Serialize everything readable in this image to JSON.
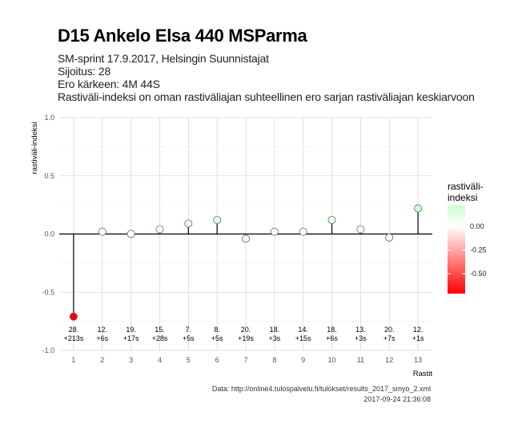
{
  "title": "D15 Ankelo Elsa 440 MSParma",
  "subtitle_lines": [
    "SM-sprint 17.9.2017, Helsingin Suunnistajat",
    "Sijoitus: 28",
    "Ero kärkeen: 4M 44S",
    "Rastiväli-indeksi on oman rastiväliajan suhteellinen ero sarjan rastiväliajan keskiarvoon"
  ],
  "caption": {
    "source": "Data: http://online4.tulospalvelu.fi/tulokset/results_2017_smyo_2.xml",
    "timestamp": "2017-09-24 21:36:08"
  },
  "chart_data": {
    "type": "scatter",
    "xlabel": "Rastit",
    "ylabel": "rastiväli-indeksi",
    "x": [
      1,
      2,
      3,
      4,
      5,
      6,
      7,
      8,
      9,
      10,
      11,
      12,
      13
    ],
    "values": [
      -0.71,
      0.02,
      0.0,
      0.04,
      0.09,
      0.12,
      -0.04,
      0.02,
      0.02,
      0.12,
      0.04,
      -0.03,
      0.22
    ],
    "annotations": [
      [
        "28.",
        "+213s"
      ],
      [
        "12.",
        "+6s"
      ],
      [
        "19.",
        "+17s"
      ],
      [
        "15.",
        "+28s"
      ],
      [
        "7.",
        "+5s"
      ],
      [
        "8.",
        "+5s"
      ],
      [
        "20.",
        "+19s"
      ],
      [
        "18.",
        "+3s"
      ],
      [
        "14.",
        "+15s"
      ],
      [
        "18.",
        "+6s"
      ],
      [
        "13.",
        "+3s"
      ],
      [
        "20.",
        "+7s"
      ],
      [
        "12.",
        "+1s"
      ]
    ],
    "xlim": [
      0.5,
      13.5
    ],
    "ylim": [
      -1.0,
      1.0
    ],
    "yticks": [
      -1.0,
      -0.5,
      0.0,
      0.5,
      1.0
    ],
    "ytick_labels": [
      "-1.0",
      "-0.5",
      "0.0",
      "0.5",
      "1.0"
    ],
    "grid": true,
    "legend": {
      "title_lines": [
        "rastiväli-",
        "indeksi"
      ],
      "ticks": [
        0.0,
        -0.25,
        -0.5
      ],
      "tick_labels": [
        "0.00",
        "-0.25",
        "-0.50"
      ],
      "range": [
        -0.71,
        0.22
      ],
      "colors": {
        "low": "#ff0000",
        "mid": "#ffffff",
        "high": "#ccffcc"
      },
      "position": "right"
    }
  }
}
